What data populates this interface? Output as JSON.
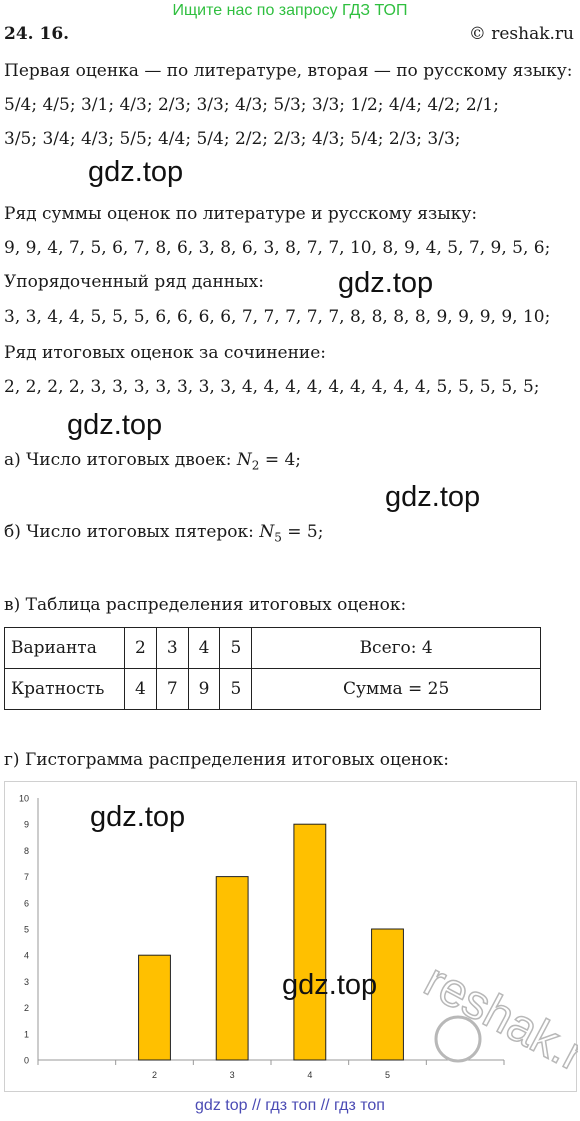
{
  "banner": "Ищите нас по запросу ГДЗ ТОП",
  "task_number": "24. 16.",
  "site_label": "© reshak.ru",
  "lines": {
    "intro": "Первая оценка — по литературе, вторая — по русскому языку:",
    "pairs_1": "5/4;  4/5;  3/1;  4/3;  2/3;  3/3;  4/3;  5/3;  3/3;  1/2;  4/4;  4/2;  2/1;",
    "pairs_2": "3/5;  3/4;  4/3;  5/5;  4/4;  5/4;  2/2;  2/3;  4/3;  5/4;  2/3;  3/3;",
    "sum_title": "Ряд суммы оценок по литературе и русскому языку:",
    "sum_row": "9, 9, 4, 7, 5, 6, 7, 8, 6, 3, 8, 6, 3, 8, 7, 7, 10, 8, 9, 4, 5, 7, 9, 5, 6;",
    "ordered_title": "Упорядоченный ряд данных:",
    "ordered_row": "3, 3, 4, 4, 5, 5, 5, 6, 6, 6, 6, 7, 7, 7, 7, 7, 8, 8, 8, 8, 9, 9, 9, 9, 10;",
    "final_title": "Ряд итоговых оценок за сочинение:",
    "final_row": "2, 2, 2, 2, 3, 3, 3, 3, 3, 3, 3, 4, 4, 4, 4, 4, 4, 4, 4, 4, 5, 5, 5, 5, 5;",
    "a_text": "а) Число итоговых двоек:",
    "a_var": "N",
    "a_sub": "2",
    "a_val": " = 4;",
    "b_text": "б) Число итоговых пятерок:",
    "b_var": "N",
    "b_sub": "5",
    "b_val": " = 5;",
    "v_title": "в) Таблица распределения итоговых оценок:",
    "g_title": "г) Гистограмма распределения итоговых оценок:"
  },
  "watermark": "gdz.top",
  "table": {
    "row1": [
      "Варианта",
      "2",
      "3",
      "4",
      "5",
      "Всего: 4"
    ],
    "row2": [
      "Кратность",
      "4",
      "7",
      "9",
      "5",
      "Сумма = 25"
    ]
  },
  "chart_data": {
    "type": "bar",
    "categories": [
      "",
      "2",
      "3",
      "4",
      "5",
      ""
    ],
    "values": [
      null,
      4,
      7,
      9,
      5,
      null
    ],
    "yticks": [
      "0",
      "1",
      "2",
      "3",
      "4",
      "5",
      "6",
      "7",
      "8",
      "9",
      "10"
    ],
    "ylim": [
      0,
      10
    ],
    "grid": false,
    "bar_color": "#ffc000",
    "title": "",
    "xlabel": "",
    "ylabel": ""
  },
  "chart_watermark": "reshak.ru",
  "footer": "gdz top  //  гдз топ  //  гдз топ"
}
